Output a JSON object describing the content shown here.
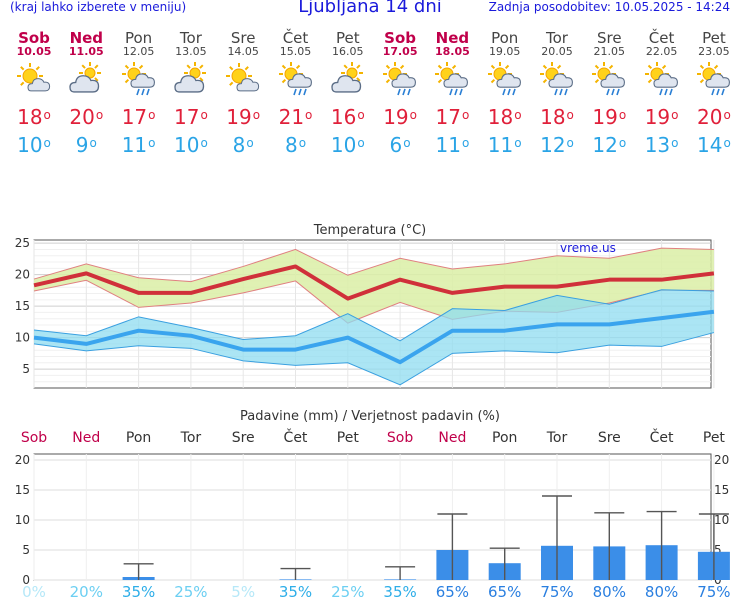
{
  "header": {
    "menu_hint": "(kraj lahko izberete v meniju)",
    "title": "Ljubljana 14 dni",
    "updated": "Zadnja posodobitev: 10.05.2025 - 14:24"
  },
  "colors": {
    "weekend": "#c0004a",
    "max_temp": "#e0203a",
    "min_temp": "#2aa4e6",
    "header_text": "#1a1adb",
    "precip_bar": "#3b8ee8"
  },
  "days": [
    {
      "name": "Sob",
      "date": "10.05",
      "weekend": true,
      "icon": "sun-cloud-icon",
      "max": "18",
      "min": "10"
    },
    {
      "name": "Ned",
      "date": "11.05",
      "weekend": true,
      "icon": "cloud-sun-icon",
      "max": "20",
      "min": "9"
    },
    {
      "name": "Pon",
      "date": "12.05",
      "weekend": false,
      "icon": "sun-cloud-rain-icon",
      "max": "17",
      "min": "11"
    },
    {
      "name": "Tor",
      "date": "13.05",
      "weekend": false,
      "icon": "cloud-sun-icon",
      "max": "17",
      "min": "10"
    },
    {
      "name": "Sre",
      "date": "14.05",
      "weekend": false,
      "icon": "sun-cloud-icon",
      "max": "19",
      "min": "8"
    },
    {
      "name": "Čet",
      "date": "15.05",
      "weekend": false,
      "icon": "sun-cloud-rain-icon",
      "max": "21",
      "min": "8"
    },
    {
      "name": "Pet",
      "date": "16.05",
      "weekend": false,
      "icon": "cloud-sun-icon",
      "max": "16",
      "min": "10"
    },
    {
      "name": "Sob",
      "date": "17.05",
      "weekend": true,
      "icon": "sun-cloud-rain-icon",
      "max": "19",
      "min": "6"
    },
    {
      "name": "Ned",
      "date": "18.05",
      "weekend": true,
      "icon": "sun-cloud-rain-icon",
      "max": "17",
      "min": "11"
    },
    {
      "name": "Pon",
      "date": "19.05",
      "weekend": false,
      "icon": "sun-cloud-rain-icon",
      "max": "18",
      "min": "11"
    },
    {
      "name": "Tor",
      "date": "20.05",
      "weekend": false,
      "icon": "sun-cloud-rain-icon",
      "max": "18",
      "min": "12"
    },
    {
      "name": "Sre",
      "date": "21.05",
      "weekend": false,
      "icon": "sun-cloud-rain-icon",
      "max": "19",
      "min": "12"
    },
    {
      "name": "Čet",
      "date": "22.05",
      "weekend": false,
      "icon": "sun-cloud-rain-icon",
      "max": "19",
      "min": "13"
    },
    {
      "name": "Pet",
      "date": "23.05",
      "weekend": false,
      "icon": "sun-cloud-rain-icon",
      "max": "20",
      "min": "14"
    }
  ],
  "chart_data": [
    {
      "type": "line",
      "title": "Temperatura (°C)",
      "watermark": "vreme.us",
      "categories": [
        "10.05",
        "11.05",
        "12.05",
        "13.05",
        "14.05",
        "15.05",
        "16.05",
        "17.05",
        "18.05",
        "19.05",
        "20.05",
        "21.05",
        "22.05",
        "23.05"
      ],
      "ylim": [
        2,
        25.5
      ],
      "yticks": [
        5,
        10,
        15,
        20,
        25
      ],
      "grid": true,
      "series": [
        {
          "values": [
            18.3,
            20.2,
            17.1,
            17.1,
            19.3,
            21.3,
            16.2,
            19.2,
            17.1,
            18.1,
            18.1,
            19.2,
            19.2,
            20.2
          ],
          "band_upper": [
            19.3,
            21.7,
            19.5,
            18.9,
            21.3,
            24.0,
            19.9,
            22.6,
            20.9,
            21.7,
            23.0,
            22.6,
            24.2,
            24.0
          ],
          "band_lower": [
            17.4,
            19.1,
            14.8,
            15.5,
            17.1,
            19.0,
            12.3,
            15.6,
            12.9,
            14.2,
            14.0,
            15.5,
            17.5,
            17.5
          ]
        },
        {
          "values": [
            10.0,
            9.0,
            11.1,
            10.3,
            8.1,
            8.1,
            10.0,
            6.1,
            11.1,
            11.1,
            12.1,
            12.1,
            13.1,
            14.1
          ],
          "band_upper": [
            11.2,
            10.3,
            13.3,
            11.6,
            9.7,
            10.3,
            13.8,
            9.5,
            14.6,
            14.3,
            16.7,
            15.3,
            17.6,
            17.4
          ],
          "band_lower": [
            9.0,
            7.9,
            8.7,
            8.3,
            6.3,
            5.6,
            6.0,
            2.5,
            7.5,
            7.9,
            7.6,
            8.8,
            8.6,
            10.8
          ]
        }
      ]
    },
    {
      "type": "bar",
      "title": "Padavine (mm) / Verjetnost padavin (%)",
      "categories": [
        "Sob",
        "Ned",
        "Pon",
        "Tor",
        "Sre",
        "Čet",
        "Pet",
        "Sob",
        "Ned",
        "Pon",
        "Tor",
        "Sre",
        "Čet",
        "Pet"
      ],
      "weekend": [
        true,
        true,
        false,
        false,
        false,
        false,
        false,
        true,
        true,
        false,
        false,
        false,
        false,
        false
      ],
      "ylim": [
        0,
        21
      ],
      "yticks": [
        0,
        5,
        10,
        15,
        20
      ],
      "values": [
        0,
        0,
        0.5,
        0,
        0,
        0.1,
        0,
        0.1,
        5.0,
        2.8,
        5.7,
        5.6,
        5.8,
        4.7
      ],
      "range_high": [
        0,
        0,
        2.7,
        0,
        0,
        1.9,
        0,
        2.2,
        11.0,
        5.3,
        14.0,
        11.2,
        11.4,
        11.0
      ],
      "probability": [
        "0%",
        "20%",
        "35%",
        "25%",
        "5%",
        "35%",
        "25%",
        "35%",
        "65%",
        "65%",
        "75%",
        "80%",
        "80%",
        "75%"
      ],
      "prob_levels": [
        0,
        20,
        35,
        25,
        5,
        35,
        25,
        35,
        65,
        65,
        75,
        80,
        80,
        75
      ]
    }
  ]
}
